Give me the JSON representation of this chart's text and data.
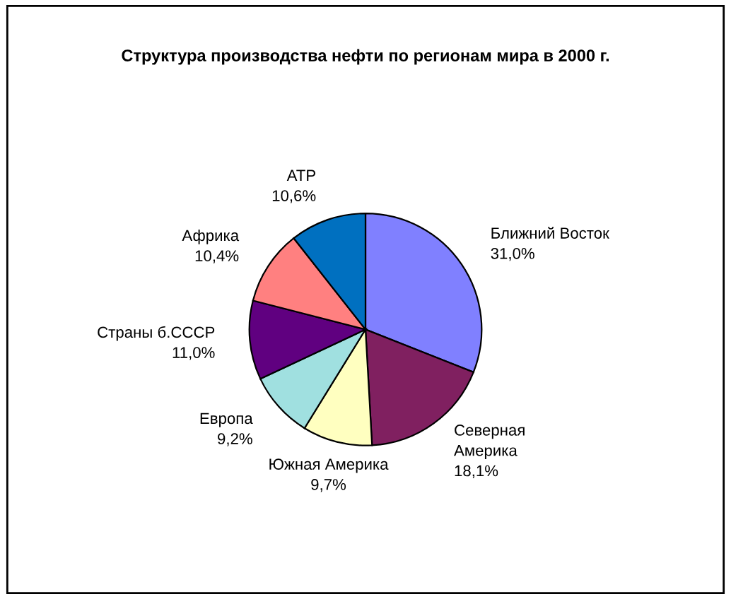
{
  "chart_data": {
    "type": "pie",
    "title": "Структура производства нефти по регионам мира в 2000 г.",
    "categories": [
      "Ближний Восток",
      "Северная\nАмерика",
      "Южная Америка",
      "Европа",
      "Страны б.СССР",
      "Африка",
      "АТР"
    ],
    "values": [
      31.0,
      18.1,
      9.7,
      9.2,
      11.0,
      10.4,
      10.6
    ],
    "value_labels": [
      "31,0%",
      "18,1%",
      "9,7%",
      "9,2%",
      "11,0%",
      "10,4%",
      "10,6%"
    ],
    "colors": [
      "#8080ff",
      "#802060",
      "#ffffc0",
      "#a0e0e0",
      "#600080",
      "#ff8080",
      "#0070c0"
    ],
    "legend": false
  }
}
